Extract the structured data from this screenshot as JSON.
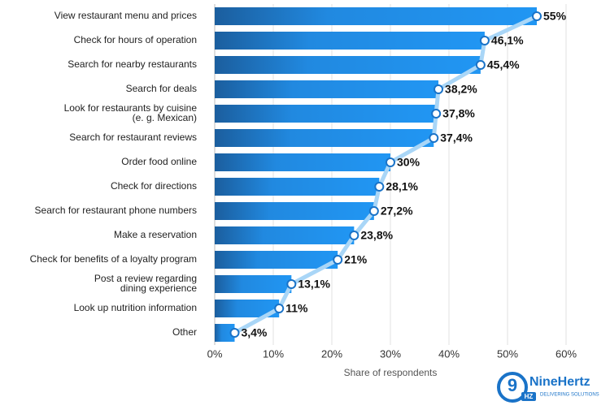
{
  "chart_data": {
    "type": "bar",
    "orientation": "horizontal",
    "categories": [
      "View restaurant menu and prices",
      "Check for hours of operation",
      "Search for nearby restaurants",
      "Search for deals",
      "Look for restaurants by cuisine\n(e. g. Mexican)",
      "Search for restaurant reviews",
      "Order food online",
      "Check for directions",
      "Search for restaurant phone numbers",
      "Make a reservation",
      "Check for benefits of a loyalty program",
      "Post a review regarding\ndining experience",
      "Look up nutrition information",
      "Other"
    ],
    "values": [
      55,
      46.1,
      45.4,
      38.2,
      37.8,
      37.4,
      30,
      28.1,
      27.2,
      23.8,
      21,
      13.1,
      11,
      3.4
    ],
    "value_labels": [
      "55%",
      "46,1%",
      "45,4%",
      "38,2%",
      "37,8%",
      "37,4%",
      "30%",
      "28,1%",
      "27,2%",
      "23,8%",
      "21%",
      "13,1%",
      "11%",
      "3,4%"
    ],
    "color": "#2196f3",
    "line_color": "#a9d6f7",
    "x_label": "Share of respondents",
    "xlim": [
      0,
      60
    ],
    "xticks": [
      {
        "value": 0,
        "label": "0%"
      },
      {
        "value": 10,
        "label": "10%"
      },
      {
        "value": 20,
        "label": "20%"
      },
      {
        "value": 30,
        "label": "30%"
      },
      {
        "value": 40,
        "label": "40%"
      },
      {
        "value": 50,
        "label": "50%"
      },
      {
        "value": 60,
        "label": "60%"
      }
    ],
    "grid": true
  },
  "logo": {
    "mark": "9",
    "badge": "HZ",
    "name": "NineHertz",
    "tagline": "DELIVERING SOLUTIONS"
  }
}
